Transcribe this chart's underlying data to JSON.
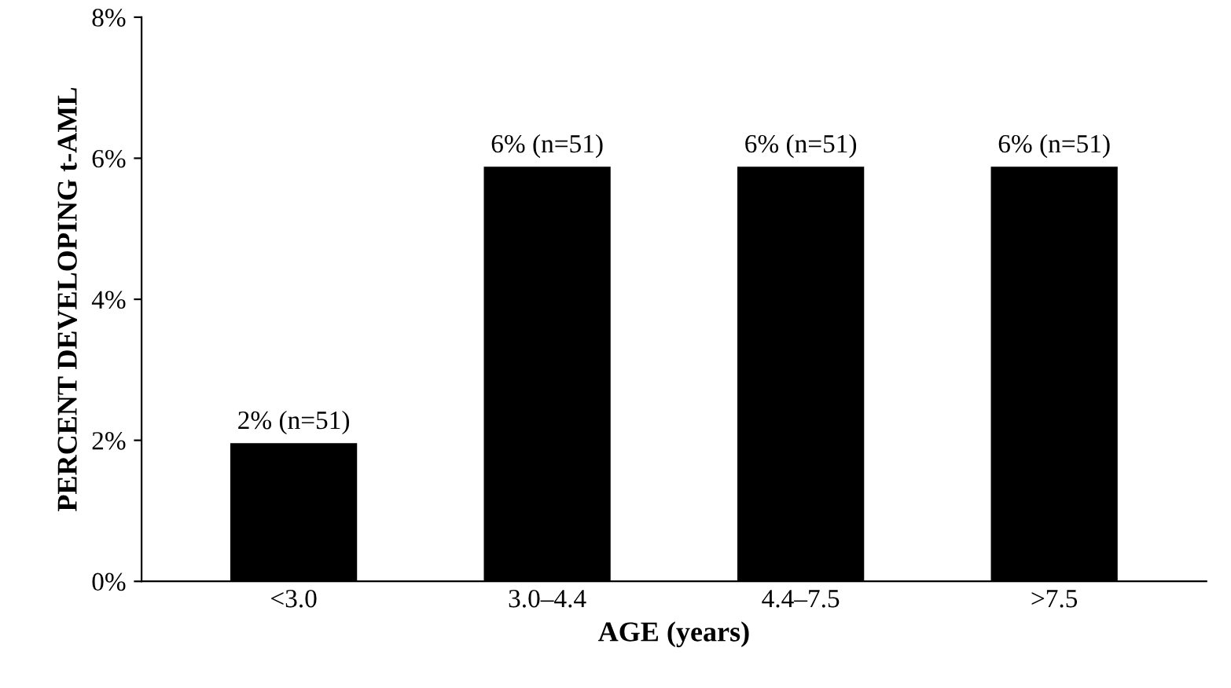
{
  "chart_data": {
    "type": "bar",
    "categories": [
      "<3.0",
      "3.0–4.4",
      "4.4–7.5",
      ">7.5"
    ],
    "values": [
      1.96,
      5.88,
      5.88,
      5.88
    ],
    "value_labels": [
      "2% (n=51)",
      "6% (n=51)",
      "6% (n=51)",
      "6% (n=51)"
    ],
    "color": "#000000",
    "xlabel": "AGE (years)",
    "ylabel": "PERCENT DEVELOPING t-AML",
    "ylim": [
      0,
      8
    ],
    "yticks": [
      {
        "value": 0,
        "label": "0%"
      },
      {
        "value": 2,
        "label": "2%"
      },
      {
        "value": 4,
        "label": "4%"
      },
      {
        "value": 6,
        "label": "6%"
      },
      {
        "value": 8,
        "label": "8%"
      }
    ],
    "grid": false
  }
}
